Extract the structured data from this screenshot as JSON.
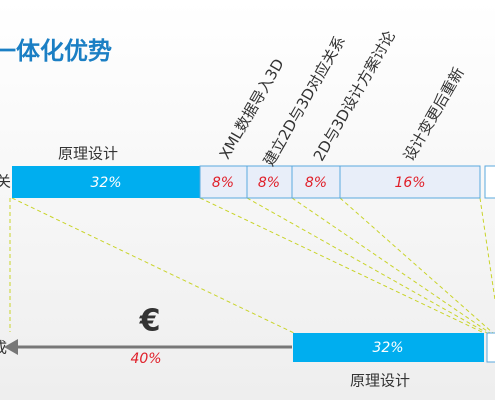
{
  "header": {
    "title": "一体化优势"
  },
  "top_bar": {
    "label": "原理设计",
    "edge_label": "关",
    "segments": [
      "32%",
      "8%",
      "8%",
      "8%",
      "16%"
    ]
  },
  "steps": [
    "XML数据导入3D",
    "建立2D与3D对应关系",
    "2D与3D设计方案讨论",
    "设计变更后重新"
  ],
  "bottom": {
    "arrow_label": "成",
    "currency": "€",
    "saving": "40%",
    "bar": "32%",
    "label": "原理设计"
  }
}
